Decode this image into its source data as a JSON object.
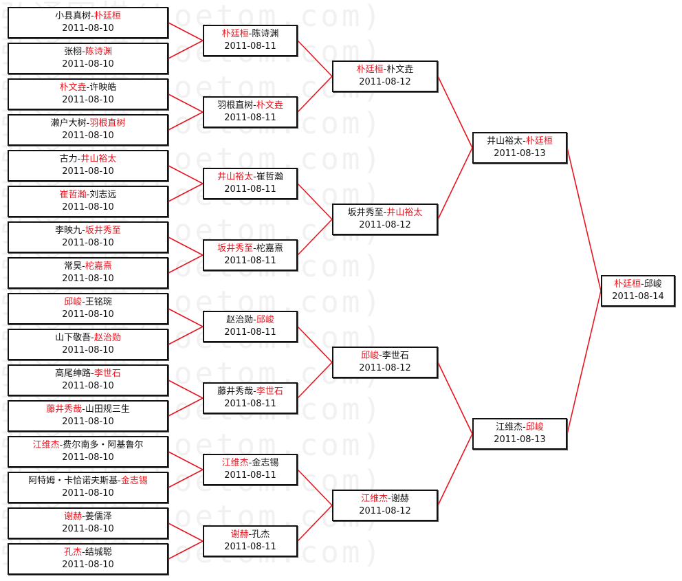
{
  "watermark": "弘通围棋(hoetom.com)",
  "colors": {
    "winner": "#e8141e",
    "line": "#e8141e",
    "text": "#111111"
  },
  "rounds": [
    {
      "date": "2011-08-10",
      "matches": [
        {
          "p1": "小县真树",
          "p2": "朴廷桓",
          "winner": 2
        },
        {
          "p1": "张栩",
          "p2": "陈诗渊",
          "winner": 2
        },
        {
          "p1": "朴文垚",
          "p2": "许映皓",
          "winner": 1
        },
        {
          "p1": "濑户大树",
          "p2": "羽根直树",
          "winner": 2
        },
        {
          "p1": "古力",
          "p2": "井山裕太",
          "winner": 2
        },
        {
          "p1": "崔哲瀚",
          "p2": "刘志远",
          "winner": 1
        },
        {
          "p1": "李映九",
          "p2": "坂井秀至",
          "winner": 2
        },
        {
          "p1": "常昊",
          "p2": "柁嘉熹",
          "winner": 2
        },
        {
          "p1": "邱峻",
          "p2": "王铭琬",
          "winner": 1
        },
        {
          "p1": "山下敬吾",
          "p2": "赵治勋",
          "winner": 2
        },
        {
          "p1": "高尾绅路",
          "p2": "李世石",
          "winner": 2
        },
        {
          "p1": "藤井秀哉",
          "p2": "山田规三生",
          "winner": 1
        },
        {
          "p1": "江维杰",
          "p2": "费尔南多・阿基鲁尔",
          "winner": 1
        },
        {
          "p1": "阿特姆・卡恰诺夫斯基",
          "p2": "金志锡",
          "winner": 2
        },
        {
          "p1": "谢赫",
          "p2": "姜儒泽",
          "winner": 1
        },
        {
          "p1": "孔杰",
          "p2": "结城聪",
          "winner": 1
        }
      ]
    },
    {
      "date": "2011-08-11",
      "matches": [
        {
          "p1": "朴廷桓",
          "p2": "陈诗渊",
          "winner": 1
        },
        {
          "p1": "羽根直树",
          "p2": "朴文垚",
          "winner": 2
        },
        {
          "p1": "井山裕太",
          "p2": "崔哲瀚",
          "winner": 1
        },
        {
          "p1": "坂井秀至",
          "p2": "柁嘉熹",
          "winner": 1
        },
        {
          "p1": "赵治勋",
          "p2": "邱峻",
          "winner": 2
        },
        {
          "p1": "藤井秀哉",
          "p2": "李世石",
          "winner": 2
        },
        {
          "p1": "江维杰",
          "p2": "金志锡",
          "winner": 1
        },
        {
          "p1": "谢赫",
          "p2": "孔杰",
          "winner": 1
        }
      ]
    },
    {
      "date": "2011-08-12",
      "matches": [
        {
          "p1": "朴廷桓",
          "p2": "朴文垚",
          "winner": 1
        },
        {
          "p1": "坂井秀至",
          "p2": "井山裕太",
          "winner": 2
        },
        {
          "p1": "邱峻",
          "p2": "李世石",
          "winner": 1
        },
        {
          "p1": "江维杰",
          "p2": "谢赫",
          "winner": 1
        }
      ]
    },
    {
      "date": "2011-08-13",
      "matches": [
        {
          "p1": "井山裕太",
          "p2": "朴廷桓",
          "winner": 2
        },
        {
          "p1": "江维杰",
          "p2": "邱峻",
          "winner": 2
        }
      ]
    },
    {
      "date": "2011-08-14",
      "matches": [
        {
          "p1": "朴廷桓",
          "p2": "邱峻",
          "winner": 1
        }
      ]
    }
  ]
}
